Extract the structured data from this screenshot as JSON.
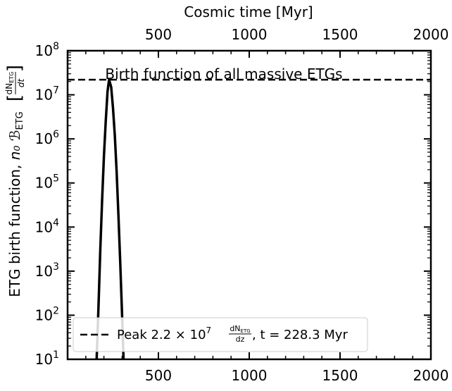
{
  "chart_data": {
    "type": "line",
    "title": "Birth function of all massive ETGs",
    "xlabel_top": "Cosmic time [Myr]",
    "ylabel_main": "ETG birth function, ",
    "ylabel_symbol": "n₀ ℬ",
    "ylabel_sub": "ETG",
    "ylabel_frac_num": "dN",
    "ylabel_frac_num_sub": "ETG",
    "ylabel_frac_den": "dt",
    "xlim": [
      0,
      2000
    ],
    "ylim": [
      10,
      100000000
    ],
    "yscale": "log",
    "x_ticks": [
      500,
      1000,
      1500,
      2000
    ],
    "x_tick_labels": [
      "500",
      "1000",
      "1500",
      "2000"
    ],
    "y_tick_exponents": [
      1,
      2,
      3,
      4,
      5,
      6,
      7,
      8
    ],
    "y_tick_base": "10",
    "series": [
      {
        "style": "solid",
        "x": [
          160,
          170,
          180,
          190,
          200,
          210,
          220,
          228.3,
          240,
          250,
          260,
          270,
          280,
          290,
          300,
          308
        ],
        "y": [
          10,
          150,
          3000,
          40000,
          400000,
          2500000,
          12000000,
          22000000,
          15000000,
          5000000,
          1200000,
          180000,
          18000,
          1500,
          100,
          10
        ]
      }
    ],
    "peak_line": {
      "y": 22000000,
      "style": "dashed"
    },
    "legend": {
      "placement": "lower-center",
      "text_before": "Peak 2.2 × 10",
      "exponent": "7",
      "frac_num": "dN",
      "frac_num_sub": "ETG",
      "frac_den": "dz",
      "text_after": ", t = 228.3 Myr"
    }
  }
}
